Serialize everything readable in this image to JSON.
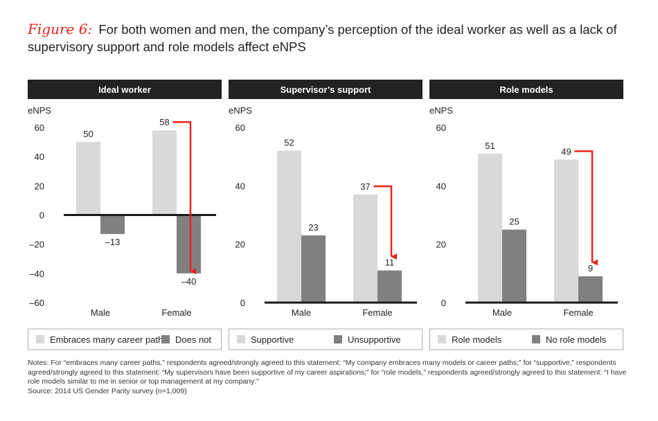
{
  "title": {
    "figure_label": "Figure 6:",
    "text": "For both women and men, the company’s perception of the ideal worker as well as a lack of supervisory support and role models affect eNPS"
  },
  "colors": {
    "accent": "#e8231e",
    "header_bg": "#222222",
    "bar_light": "#d9d9d9",
    "bar_dark": "#808080"
  },
  "chart_data": [
    {
      "type": "bar",
      "title": "Ideal worker",
      "ylabel": "eNPS",
      "ylim": [
        -60,
        60
      ],
      "yticks": [
        60,
        40,
        20,
        0,
        -20,
        -40,
        -60
      ],
      "ytick_labels": [
        "60",
        "40",
        "20",
        "0",
        "–20",
        "–40",
        "–60"
      ],
      "categories": [
        "Male",
        "Female"
      ],
      "series": [
        {
          "name": "Embraces many career paths",
          "values": [
            50,
            58
          ],
          "labels": [
            "50",
            "58"
          ]
        },
        {
          "name": "Does not",
          "values": [
            -13,
            -40
          ],
          "labels": [
            "–13",
            "–40"
          ]
        }
      ],
      "annotation": {
        "type": "arrow",
        "category": "Female",
        "from": 58,
        "to": -40
      },
      "legend": "bottom"
    },
    {
      "type": "bar",
      "title": "Supervisor’s support",
      "ylabel": "eNPS",
      "ylim": [
        0,
        60
      ],
      "yticks": [
        60,
        40,
        20,
        0
      ],
      "ytick_labels": [
        "60",
        "40",
        "20",
        "0"
      ],
      "categories": [
        "Male",
        "Female"
      ],
      "series": [
        {
          "name": "Supportive",
          "values": [
            52,
            37
          ],
          "labels": [
            "52",
            "37"
          ]
        },
        {
          "name": "Unsupportive",
          "values": [
            23,
            11
          ],
          "labels": [
            "23",
            "11"
          ]
        }
      ],
      "annotation": {
        "type": "arrow",
        "category": "Female",
        "from": 37,
        "to": 11
      },
      "legend": "bottom"
    },
    {
      "type": "bar",
      "title": "Role models",
      "ylabel": "eNPS",
      "ylim": [
        0,
        60
      ],
      "yticks": [
        60,
        40,
        20,
        0
      ],
      "ytick_labels": [
        "60",
        "40",
        "20",
        "0"
      ],
      "categories": [
        "Male",
        "Female"
      ],
      "series": [
        {
          "name": "Role models",
          "values": [
            51,
            49
          ],
          "labels": [
            "51",
            "49"
          ]
        },
        {
          "name": "No role models",
          "values": [
            25,
            9
          ],
          "labels": [
            "25",
            "9"
          ]
        }
      ],
      "annotation": {
        "type": "arrow",
        "category": "Female",
        "from": 49,
        "to": 9
      },
      "legend": "bottom"
    }
  ],
  "notes": {
    "lines": [
      "Notes: For “embraces many career paths,” respondents agreed/strongly agreed to this statement: “My company embraces many models or career paths;” for “supportive,” respondents agreed/strongly agreed to this statement: “My supervisors have been supportive of my career aspirations;” for “role models,” respondents agreed/strongly agreed to this statement: “I have role models similar to me in senior or top management at my company:”",
      "Source: 2014 US Gender Parity survey (n=1,009)"
    ]
  }
}
